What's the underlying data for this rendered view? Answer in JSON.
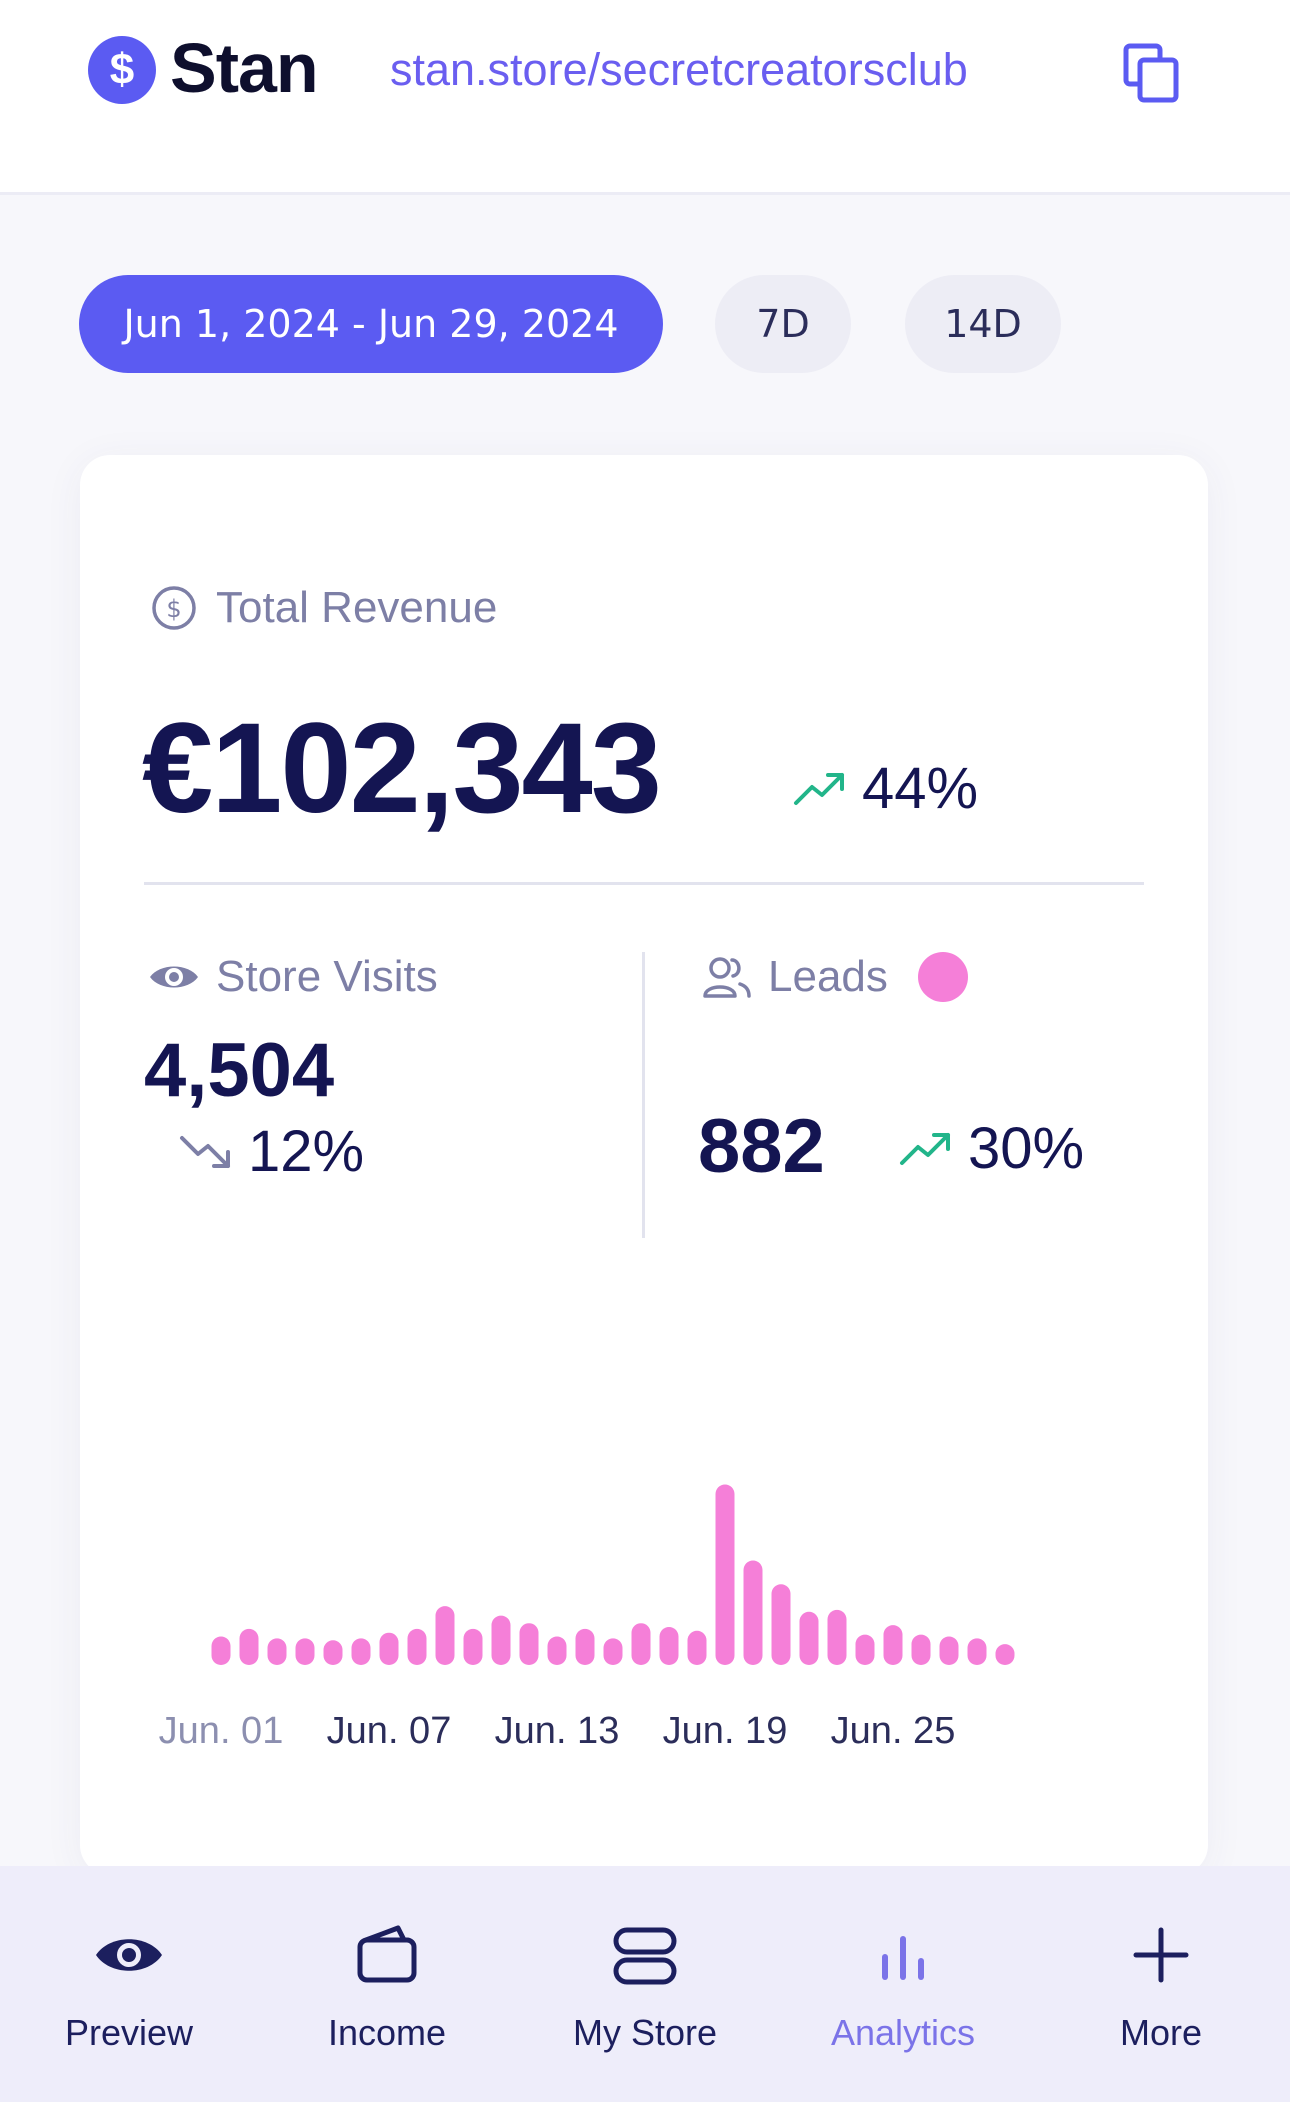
{
  "header": {
    "brand": "Stan",
    "logo_symbol": "$",
    "store_url": "stan.store/secretcreatorsclub"
  },
  "filters": {
    "date_range": "Jun 1, 2024 - Jun 29, 2024",
    "quick_7d": "7D",
    "quick_14d": "14D"
  },
  "revenue": {
    "label": "Total Revenue",
    "value": "€102,343",
    "change": "44%",
    "direction": "up"
  },
  "store_visits": {
    "label": "Store Visits",
    "value": "4,504",
    "change": "12%",
    "direction": "down"
  },
  "leads": {
    "label": "Leads",
    "value": "882",
    "change": "30%",
    "direction": "up"
  },
  "colors": {
    "accent": "#5b5bf2",
    "bar": "#f57fd8",
    "trend_up": "#22b58a",
    "trend_down": "#7d7fa6",
    "nav_active": "#7b73e8"
  },
  "chart_data": {
    "type": "bar",
    "x": [
      "Jun. 01",
      "Jun. 02",
      "Jun. 03",
      "Jun. 04",
      "Jun. 05",
      "Jun. 06",
      "Jun. 07",
      "Jun. 08",
      "Jun. 09",
      "Jun. 10",
      "Jun. 11",
      "Jun. 12",
      "Jun. 13",
      "Jun. 14",
      "Jun. 15",
      "Jun. 16",
      "Jun. 17",
      "Jun. 18",
      "Jun. 19",
      "Jun. 20",
      "Jun. 21",
      "Jun. 22",
      "Jun. 23",
      "Jun. 24",
      "Jun. 25",
      "Jun. 26",
      "Jun. 27",
      "Jun. 28",
      "Jun. 29"
    ],
    "tick_labels": [
      "Jun. 01",
      "Jun. 07",
      "Jun. 13",
      "Jun. 19",
      "Jun. 25"
    ],
    "tick_indices": [
      0,
      6,
      12,
      18,
      24
    ],
    "values": [
      30,
      38,
      28,
      28,
      26,
      28,
      34,
      38,
      62,
      38,
      52,
      44,
      30,
      38,
      28,
      44,
      40,
      36,
      190,
      110,
      85,
      56,
      58,
      32,
      42,
      32,
      30,
      28,
      22
    ],
    "ylim": [
      0,
      200
    ]
  },
  "nav": [
    {
      "label": "Preview",
      "icon": "eye-icon",
      "active": false
    },
    {
      "label": "Income",
      "icon": "wallet-icon",
      "active": false
    },
    {
      "label": "My Store",
      "icon": "store-icon",
      "active": false
    },
    {
      "label": "Analytics",
      "icon": "bar-chart-icon",
      "active": true
    },
    {
      "label": "More",
      "icon": "plus-icon",
      "active": false
    }
  ]
}
